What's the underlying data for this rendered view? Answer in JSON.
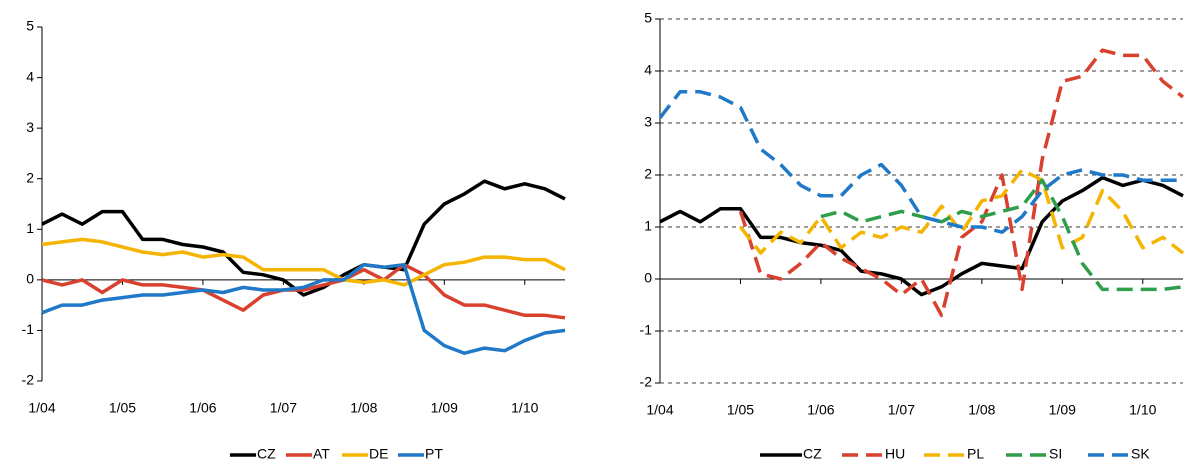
{
  "chart_data": [
    {
      "type": "line",
      "x": [
        2004,
        2004.25,
        2004.5,
        2004.75,
        2005,
        2005.25,
        2005.5,
        2005.75,
        2006,
        2006.25,
        2006.5,
        2006.75,
        2007,
        2007.25,
        2007.5,
        2007.75,
        2008,
        2008.25,
        2008.5,
        2008.75,
        2009,
        2009.25,
        2009.5,
        2009.75,
        2010,
        2010.25,
        2010.5
      ],
      "xlim": [
        2004,
        2010.5
      ],
      "xticks": [
        {
          "value": 2004,
          "label": "1/04"
        },
        {
          "value": 2005,
          "label": "1/05"
        },
        {
          "value": 2006,
          "label": "1/06"
        },
        {
          "value": 2007,
          "label": "1/07"
        },
        {
          "value": 2008,
          "label": "1/08"
        },
        {
          "value": 2009,
          "label": "1/09"
        },
        {
          "value": 2010,
          "label": "1/10"
        }
      ],
      "ylim": [
        -2,
        5
      ],
      "yticks": [
        -2,
        -1,
        0,
        1,
        2,
        3,
        4,
        5
      ],
      "grid": false,
      "legend": "bottom",
      "series": [
        {
          "name": "CZ",
          "color": "#000000",
          "values": [
            1.1,
            1.3,
            1.1,
            1.35,
            1.35,
            0.8,
            0.8,
            0.7,
            0.65,
            0.55,
            0.15,
            0.1,
            0.0,
            -0.3,
            -0.15,
            0.1,
            0.3,
            0.25,
            0.2,
            1.1,
            1.5,
            1.7,
            1.95,
            1.8,
            1.9,
            1.8,
            1.6
          ]
        },
        {
          "name": "AT",
          "color": "#d9412f",
          "values": [
            0,
            -0.1,
            0,
            -0.25,
            0,
            -0.1,
            -0.1,
            -0.15,
            -0.2,
            -0.4,
            -0.6,
            -0.3,
            -0.2,
            -0.2,
            -0.1,
            0,
            0.2,
            0,
            0.3,
            0.1,
            -0.3,
            -0.5,
            -0.5,
            -0.6,
            -0.7,
            -0.7,
            -0.75
          ]
        },
        {
          "name": "DE",
          "color": "#f4b400",
          "values": [
            0.7,
            0.75,
            0.8,
            0.75,
            0.65,
            0.55,
            0.5,
            0.55,
            0.45,
            0.5,
            0.45,
            0.2,
            0.2,
            0.2,
            0.2,
            0.0,
            -0.05,
            0.0,
            -0.1,
            0.1,
            0.3,
            0.35,
            0.45,
            0.45,
            0.4,
            0.4,
            0.2
          ]
        },
        {
          "name": "PT",
          "color": "#1f78c8",
          "values": [
            -0.65,
            -0.5,
            -0.5,
            -0.4,
            -0.35,
            -0.3,
            -0.3,
            -0.25,
            -0.2,
            -0.25,
            -0.15,
            -0.2,
            -0.2,
            -0.15,
            0.0,
            0.0,
            0.3,
            0.25,
            0.3,
            -1.0,
            -1.3,
            -1.45,
            -1.35,
            -1.4,
            -1.2,
            -1.05,
            -1.0
          ]
        }
      ]
    },
    {
      "type": "line",
      "x": [
        2004,
        2004.25,
        2004.5,
        2004.75,
        2005,
        2005.25,
        2005.5,
        2005.75,
        2006,
        2006.25,
        2006.5,
        2006.75,
        2007,
        2007.25,
        2007.5,
        2007.75,
        2008,
        2008.25,
        2008.5,
        2008.75,
        2009,
        2009.25,
        2009.5,
        2009.75,
        2010,
        2010.25,
        2010.5
      ],
      "xlim": [
        2004,
        2010.5
      ],
      "xticks": [
        {
          "value": 2004,
          "label": "1/04"
        },
        {
          "value": 2005,
          "label": "1/05"
        },
        {
          "value": 2006,
          "label": "1/06"
        },
        {
          "value": 2007,
          "label": "1/07"
        },
        {
          "value": 2008,
          "label": "1/08"
        },
        {
          "value": 2009,
          "label": "1/09"
        },
        {
          "value": 2010,
          "label": "1/10"
        }
      ],
      "ylim": [
        -2,
        5
      ],
      "yticks": [
        -2,
        -1,
        0,
        1,
        2,
        3,
        4,
        5
      ],
      "grid": true,
      "legend": "bottom",
      "series": [
        {
          "name": "CZ",
          "color": "#000000",
          "dashed": false,
          "values": [
            1.1,
            1.3,
            1.1,
            1.35,
            1.35,
            0.8,
            0.8,
            0.7,
            0.65,
            0.55,
            0.15,
            0.1,
            0.0,
            -0.3,
            -0.15,
            0.1,
            0.3,
            0.25,
            0.2,
            1.1,
            1.5,
            1.7,
            1.95,
            1.8,
            1.9,
            1.8,
            1.6
          ]
        },
        {
          "name": "HU",
          "color": "#d9412f",
          "dashed": true,
          "values": [
            null,
            null,
            null,
            null,
            1.3,
            0.1,
            0.0,
            0.3,
            0.7,
            0.4,
            0.2,
            0.0,
            -0.3,
            0.0,
            -0.7,
            0.8,
            1.1,
            2.0,
            -0.2,
            2.3,
            3.8,
            3.9,
            4.4,
            4.3,
            4.3,
            3.8,
            3.5
          ]
        },
        {
          "name": "PL",
          "color": "#f4b400",
          "dashed": true,
          "values": [
            null,
            null,
            null,
            null,
            1.0,
            0.5,
            0.9,
            0.7,
            1.2,
            0.6,
            0.9,
            0.8,
            1.0,
            0.9,
            1.4,
            0.9,
            1.5,
            1.6,
            2.1,
            1.9,
            0.6,
            0.8,
            1.7,
            1.3,
            0.6,
            0.8,
            0.5
          ]
        },
        {
          "name": "SI",
          "color": "#2e9e4a",
          "dashed": true,
          "values": [
            null,
            null,
            null,
            null,
            null,
            null,
            null,
            null,
            1.2,
            1.3,
            1.1,
            1.2,
            1.3,
            1.2,
            1.1,
            1.3,
            1.2,
            1.3,
            1.4,
            1.9,
            1.2,
            0.3,
            -0.2,
            -0.2,
            -0.2,
            -0.2,
            -0.15
          ]
        },
        {
          "name": "SK",
          "color": "#1f78c8",
          "dashed": true,
          "values": [
            3.1,
            3.6,
            3.6,
            3.5,
            3.3,
            2.5,
            2.2,
            1.8,
            1.6,
            1.6,
            2.0,
            2.2,
            1.8,
            1.2,
            1.1,
            1.0,
            1.0,
            0.9,
            1.2,
            1.7,
            2.0,
            2.1,
            2.0,
            2.0,
            1.9,
            1.9,
            1.9
          ]
        }
      ]
    }
  ]
}
